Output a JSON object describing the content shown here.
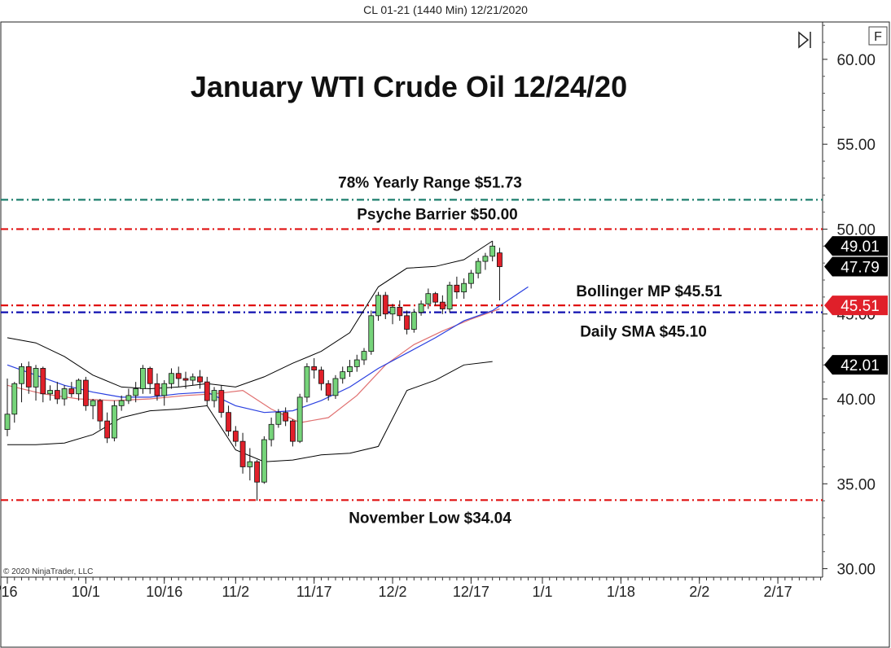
{
  "header": {
    "instrument": "CL 01-21 (1440 Min)  12/21/2020"
  },
  "chart_data": {
    "type": "candlestick",
    "title": "January WTI Crude Oil 12/24/20",
    "copyright": "© 2020 NinjaTrader, LLC",
    "corner_button": "F",
    "ylim": [
      29.5,
      62.2
    ],
    "y_ticks": [
      {
        "value": 60,
        "label": "60.00"
      },
      {
        "value": 55,
        "label": "55.00"
      },
      {
        "value": 50,
        "label": "50.00"
      },
      {
        "value": 45,
        "label": "45.00"
      },
      {
        "value": 40,
        "label": "40.00"
      },
      {
        "value": 35,
        "label": "35.00"
      },
      {
        "value": 30,
        "label": "30.00"
      }
    ],
    "x_ticks": [
      {
        "index": 0,
        "label": "/16"
      },
      {
        "index": 11,
        "label": "10/1"
      },
      {
        "index": 22,
        "label": "10/16"
      },
      {
        "index": 32,
        "label": "11/2"
      },
      {
        "index": 43,
        "label": "11/17"
      },
      {
        "index": 54,
        "label": "12/2"
      },
      {
        "index": 65,
        "label": "12/17"
      },
      {
        "index": 75,
        "label": "1/1"
      },
      {
        "index": 86,
        "label": "1/18"
      },
      {
        "index": 97,
        "label": "2/2"
      },
      {
        "index": 108,
        "label": "2/17"
      }
    ],
    "candles": [
      {
        "o": 38.2,
        "h": 41.2,
        "l": 37.8,
        "c": 39.1
      },
      {
        "o": 39.1,
        "h": 41.0,
        "l": 38.6,
        "c": 40.9
      },
      {
        "o": 40.9,
        "h": 42.1,
        "l": 39.8,
        "c": 41.9
      },
      {
        "o": 41.9,
        "h": 42.2,
        "l": 40.3,
        "c": 40.7
      },
      {
        "o": 40.7,
        "h": 42.0,
        "l": 39.9,
        "c": 41.8
      },
      {
        "o": 41.8,
        "h": 41.9,
        "l": 39.8,
        "c": 40.3
      },
      {
        "o": 40.3,
        "h": 40.8,
        "l": 39.9,
        "c": 40.5
      },
      {
        "o": 40.5,
        "h": 41.0,
        "l": 39.7,
        "c": 40.0
      },
      {
        "o": 40.0,
        "h": 40.8,
        "l": 39.6,
        "c": 40.6
      },
      {
        "o": 40.6,
        "h": 41.0,
        "l": 40.1,
        "c": 40.3
      },
      {
        "o": 40.3,
        "h": 41.2,
        "l": 39.9,
        "c": 41.1
      },
      {
        "o": 41.1,
        "h": 41.3,
        "l": 39.3,
        "c": 39.6
      },
      {
        "o": 39.6,
        "h": 40.0,
        "l": 38.8,
        "c": 39.9
      },
      {
        "o": 39.9,
        "h": 40.0,
        "l": 38.2,
        "c": 38.7
      },
      {
        "o": 38.7,
        "h": 39.2,
        "l": 37.4,
        "c": 37.7
      },
      {
        "o": 37.7,
        "h": 39.9,
        "l": 37.5,
        "c": 39.6
      },
      {
        "o": 39.6,
        "h": 40.2,
        "l": 39.3,
        "c": 39.9
      },
      {
        "o": 39.9,
        "h": 40.6,
        "l": 39.7,
        "c": 40.2
      },
      {
        "o": 40.2,
        "h": 41.0,
        "l": 39.8,
        "c": 40.6
      },
      {
        "o": 40.6,
        "h": 42.0,
        "l": 40.3,
        "c": 41.8
      },
      {
        "o": 41.8,
        "h": 41.9,
        "l": 40.3,
        "c": 40.9
      },
      {
        "o": 40.9,
        "h": 41.5,
        "l": 39.9,
        "c": 40.2
      },
      {
        "o": 40.2,
        "h": 41.1,
        "l": 39.6,
        "c": 40.9
      },
      {
        "o": 40.9,
        "h": 41.8,
        "l": 40.6,
        "c": 41.5
      },
      {
        "o": 41.5,
        "h": 41.9,
        "l": 40.7,
        "c": 41.2
      },
      {
        "o": 41.2,
        "h": 41.6,
        "l": 40.6,
        "c": 41.1
      },
      {
        "o": 41.1,
        "h": 41.5,
        "l": 40.8,
        "c": 41.3
      },
      {
        "o": 41.3,
        "h": 41.7,
        "l": 40.6,
        "c": 41.0
      },
      {
        "o": 41.0,
        "h": 41.3,
        "l": 39.6,
        "c": 39.9
      },
      {
        "o": 39.9,
        "h": 40.7,
        "l": 39.5,
        "c": 40.5
      },
      {
        "o": 40.5,
        "h": 40.8,
        "l": 38.9,
        "c": 39.2
      },
      {
        "o": 39.2,
        "h": 39.6,
        "l": 37.8,
        "c": 38.1
      },
      {
        "o": 38.1,
        "h": 38.4,
        "l": 37.2,
        "c": 37.5
      },
      {
        "o": 37.5,
        "h": 38.0,
        "l": 35.6,
        "c": 36.0
      },
      {
        "o": 36.0,
        "h": 37.1,
        "l": 35.2,
        "c": 36.3
      },
      {
        "o": 36.3,
        "h": 36.4,
        "l": 34.0,
        "c": 35.1
      },
      {
        "o": 35.1,
        "h": 37.8,
        "l": 35.0,
        "c": 37.6
      },
      {
        "o": 37.6,
        "h": 38.9,
        "l": 37.2,
        "c": 38.5
      },
      {
        "o": 38.5,
        "h": 39.4,
        "l": 38.3,
        "c": 39.2
      },
      {
        "o": 39.2,
        "h": 39.5,
        "l": 38.4,
        "c": 38.7
      },
      {
        "o": 38.7,
        "h": 38.8,
        "l": 37.2,
        "c": 37.5
      },
      {
        "o": 37.5,
        "h": 40.3,
        "l": 37.4,
        "c": 40.1
      },
      {
        "o": 40.1,
        "h": 42.1,
        "l": 39.8,
        "c": 41.9
      },
      {
        "o": 41.9,
        "h": 42.4,
        "l": 41.2,
        "c": 41.7
      },
      {
        "o": 41.7,
        "h": 41.9,
        "l": 40.5,
        "c": 40.9
      },
      {
        "o": 40.9,
        "h": 41.1,
        "l": 39.9,
        "c": 40.2
      },
      {
        "o": 40.2,
        "h": 41.4,
        "l": 40.0,
        "c": 41.2
      },
      {
        "o": 41.2,
        "h": 41.9,
        "l": 40.9,
        "c": 41.6
      },
      {
        "o": 41.6,
        "h": 42.3,
        "l": 41.3,
        "c": 41.9
      },
      {
        "o": 41.9,
        "h": 42.6,
        "l": 41.6,
        "c": 42.3
      },
      {
        "o": 42.3,
        "h": 43.0,
        "l": 42.0,
        "c": 42.8
      },
      {
        "o": 42.8,
        "h": 45.2,
        "l": 42.6,
        "c": 44.9
      },
      {
        "o": 44.9,
        "h": 46.3,
        "l": 44.6,
        "c": 46.1
      },
      {
        "o": 46.1,
        "h": 46.3,
        "l": 44.7,
        "c": 45.0
      },
      {
        "o": 45.0,
        "h": 45.6,
        "l": 44.4,
        "c": 45.4
      },
      {
        "o": 45.4,
        "h": 45.8,
        "l": 44.6,
        "c": 44.9
      },
      {
        "o": 44.9,
        "h": 45.2,
        "l": 43.8,
        "c": 44.1
      },
      {
        "o": 44.1,
        "h": 45.3,
        "l": 43.9,
        "c": 45.1
      },
      {
        "o": 45.1,
        "h": 45.8,
        "l": 44.9,
        "c": 45.6
      },
      {
        "o": 45.6,
        "h": 46.5,
        "l": 45.3,
        "c": 46.2
      },
      {
        "o": 46.2,
        "h": 46.3,
        "l": 45.5,
        "c": 45.7
      },
      {
        "o": 45.7,
        "h": 46.1,
        "l": 45.0,
        "c": 45.3
      },
      {
        "o": 45.3,
        "h": 46.9,
        "l": 45.1,
        "c": 46.7
      },
      {
        "o": 46.7,
        "h": 47.2,
        "l": 45.9,
        "c": 46.3
      },
      {
        "o": 46.3,
        "h": 47.1,
        "l": 45.9,
        "c": 46.8
      },
      {
        "o": 46.8,
        "h": 47.6,
        "l": 46.5,
        "c": 47.4
      },
      {
        "o": 47.4,
        "h": 48.3,
        "l": 47.1,
        "c": 48.1
      },
      {
        "o": 48.1,
        "h": 48.6,
        "l": 47.6,
        "c": 48.4
      },
      {
        "o": 48.4,
        "h": 49.3,
        "l": 48.1,
        "c": 49.0
      },
      {
        "o": 48.6,
        "h": 48.9,
        "l": 45.8,
        "c": 47.79
      }
    ],
    "bollinger_upper": [
      [
        0,
        43.6
      ],
      [
        4,
        43.3
      ],
      [
        8,
        42.5
      ],
      [
        12,
        41.4
      ],
      [
        16,
        40.7
      ],
      [
        20,
        40.6
      ],
      [
        24,
        40.7
      ],
      [
        28,
        40.9
      ],
      [
        32,
        40.7
      ],
      [
        36,
        41.3
      ],
      [
        40,
        42.1
      ],
      [
        44,
        42.8
      ],
      [
        48,
        43.9
      ],
      [
        52,
        46.6
      ],
      [
        56,
        47.7
      ],
      [
        60,
        47.8
      ],
      [
        64,
        48.2
      ],
      [
        68,
        49.3
      ]
    ],
    "bollinger_mid": [
      [
        0,
        42.0
      ],
      [
        4,
        41.4
      ],
      [
        8,
        40.8
      ],
      [
        12,
        40.4
      ],
      [
        16,
        40.1
      ],
      [
        20,
        40.1
      ],
      [
        24,
        40.3
      ],
      [
        28,
        40.4
      ],
      [
        32,
        39.6
      ],
      [
        36,
        39.2
      ],
      [
        40,
        39.3
      ],
      [
        44,
        39.9
      ],
      [
        48,
        40.7
      ],
      [
        52,
        41.8
      ],
      [
        56,
        42.7
      ],
      [
        60,
        43.6
      ],
      [
        64,
        44.6
      ],
      [
        68,
        45.2
      ],
      [
        73,
        46.6
      ]
    ],
    "bollinger_lower": [
      [
        0,
        37.3
      ],
      [
        4,
        37.3
      ],
      [
        8,
        37.4
      ],
      [
        12,
        37.9
      ],
      [
        16,
        38.9
      ],
      [
        20,
        39.3
      ],
      [
        24,
        39.4
      ],
      [
        28,
        39.6
      ],
      [
        32,
        37.0
      ],
      [
        36,
        36.3
      ],
      [
        40,
        36.4
      ],
      [
        44,
        36.7
      ],
      [
        48,
        36.8
      ],
      [
        52,
        37.2
      ],
      [
        56,
        40.5
      ],
      [
        60,
        41.1
      ],
      [
        64,
        42.0
      ],
      [
        68,
        42.2
      ]
    ],
    "sma": [
      [
        0,
        40.8
      ],
      [
        5,
        40.3
      ],
      [
        10,
        40.0
      ],
      [
        15,
        39.9
      ],
      [
        20,
        40.0
      ],
      [
        25,
        40.2
      ],
      [
        29,
        40.3
      ],
      [
        33,
        40.5
      ],
      [
        37,
        39.4
      ],
      [
        41,
        38.6
      ],
      [
        45,
        38.9
      ],
      [
        49,
        40.2
      ],
      [
        53,
        42.0
      ],
      [
        57,
        43.2
      ],
      [
        61,
        44.0
      ],
      [
        65,
        44.7
      ],
      [
        69,
        45.3
      ]
    ],
    "horizontal_lines": [
      {
        "label": "78% Yearly Range $51.73",
        "value": 51.73,
        "color": "#1e7f6e"
      },
      {
        "label": "Psyche Barrier $50.00",
        "value": 50.0,
        "color": "#e01010"
      },
      {
        "label": "Bollinger MP $45.51",
        "value": 45.51,
        "color": "#e01010"
      },
      {
        "label": "Daily SMA $45.10",
        "value": 45.1,
        "color": "#1010b0"
      },
      {
        "label": "November Low $34.04",
        "value": 34.04,
        "color": "#e01010"
      }
    ],
    "price_badges": [
      {
        "value": 49.01,
        "label": "49.01",
        "color": "#000000"
      },
      {
        "value": 47.79,
        "label": "47.79",
        "color": "#000000"
      },
      {
        "value": 45.51,
        "label": "45.51",
        "color": "#e0202a"
      },
      {
        "value": 42.01,
        "label": "42.01",
        "color": "#000000"
      }
    ],
    "colors": {
      "up": "#76d47a",
      "down": "#e0202a",
      "bollinger": "#000000",
      "sma": "#e07070",
      "blue_band": "#2a40e0"
    }
  }
}
